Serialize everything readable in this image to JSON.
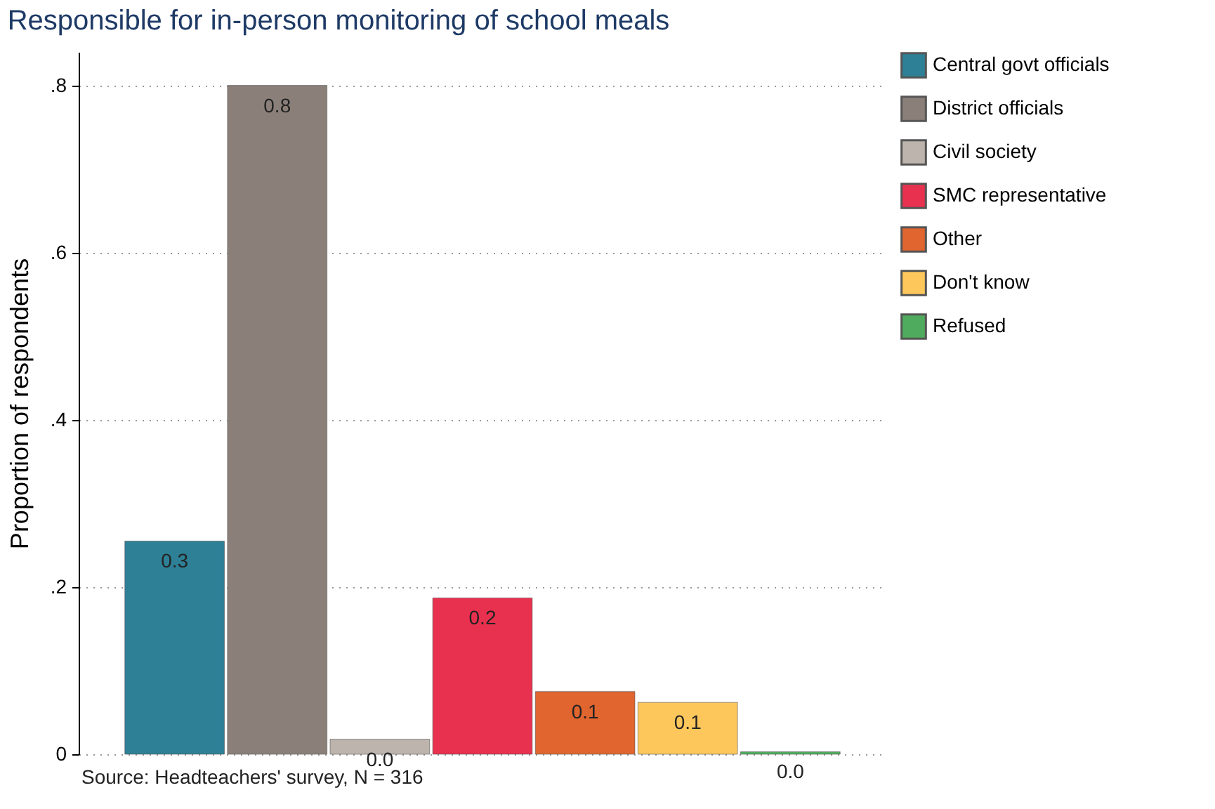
{
  "chart_data": {
    "type": "bar",
    "title": "Responsible for in-person monitoring of school meals",
    "ylabel": "Proportion of respondents",
    "categories": [
      null
    ],
    "series": [
      {
        "name": "Central govt officials",
        "color": "#2e8096",
        "values": [
          0.255
        ],
        "value_labels": [
          "0.3"
        ]
      },
      {
        "name": "District officials",
        "color": "#8b8079",
        "values": [
          0.8
        ],
        "value_labels": [
          "0.8"
        ]
      },
      {
        "name": "Civil society",
        "color": "#bdb5ad",
        "values": [
          0.018
        ],
        "value_labels": [
          "0.0"
        ]
      },
      {
        "name": "SMC representative",
        "color": "#e8304f",
        "values": [
          0.187
        ],
        "value_labels": [
          "0.2"
        ]
      },
      {
        "name": "Other",
        "color": "#e0652f",
        "values": [
          0.075
        ],
        "value_labels": [
          "0.1"
        ]
      },
      {
        "name": "Don't know",
        "color": "#fdc75b",
        "values": [
          0.062
        ],
        "value_labels": [
          "0.1"
        ]
      },
      {
        "name": "Refused",
        "color": "#4fab5d",
        "values": [
          0.003
        ],
        "value_labels": [
          "0.0"
        ]
      }
    ],
    "ylim": [
      0,
      0.84
    ],
    "yticks": [
      {
        "value": 0,
        "label": "0"
      },
      {
        "value": 0.2,
        "label": ".2"
      },
      {
        "value": 0.4,
        "label": ".4"
      },
      {
        "value": 0.6,
        "label": ".6"
      },
      {
        "value": 0.8,
        "label": ".8"
      }
    ],
    "grid": "y",
    "legend": "right",
    "annotations": [
      "Source: Headteachers' survey, N = 316"
    ]
  }
}
